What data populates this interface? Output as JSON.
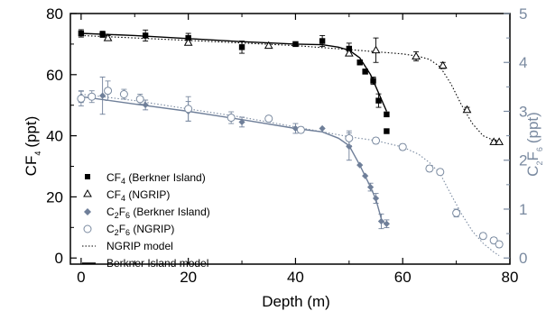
{
  "chart_data": {
    "type": "scatter",
    "x_axis": {
      "label": "Depth (m)",
      "range": [
        -2,
        80
      ],
      "ticks": [
        0,
        20,
        40,
        60,
        80
      ]
    },
    "y_left": {
      "label_main": "CF",
      "label_sub": "4",
      "label_unit": "(ppt)",
      "range": [
        -2,
        80
      ],
      "ticks": [
        0,
        20,
        40,
        60,
        80
      ],
      "color": "#000000"
    },
    "y_right": {
      "label_c": "C",
      "label_sub1": "2",
      "label_f": "F",
      "label_sub2": "6",
      "label_unit": "(ppt)",
      "range": [
        -0.125,
        5
      ],
      "ticks": [
        0,
        1,
        2,
        3,
        4,
        5
      ],
      "color": "#7a8aa0"
    },
    "legend": {
      "position": "lower-left",
      "entries": [
        {
          "pre": "CF",
          "sub": "4",
          "post": " (Berkner Island)"
        },
        {
          "pre": "CF",
          "sub": "4",
          "post": " (NGRIP)"
        },
        {
          "pre": "C",
          "sub": "2",
          "mid": "F",
          "sub2": "6",
          "post": " (Berkner Island)"
        },
        {
          "pre": "C",
          "sub": "2",
          "mid": "F",
          "sub2": "6",
          "post": " (NGRIP)"
        },
        {
          "pre": "NGRIP model"
        },
        {
          "pre": "Berkner Island model"
        }
      ]
    },
    "series": [
      {
        "name": "CF4 (Berkner Island)",
        "axis": "left",
        "marker": "square",
        "color": "#000000",
        "points": [
          {
            "x": 0,
            "y": 73.5,
            "err": 1.2
          },
          {
            "x": 4,
            "y": 73.2,
            "err": 1.0
          },
          {
            "x": 12,
            "y": 72.8,
            "err": 1.8
          },
          {
            "x": 20,
            "y": 72.0,
            "err": 1.5
          },
          {
            "x": 30,
            "y": 69.0,
            "err": 2.0
          },
          {
            "x": 40,
            "y": 70.0,
            "err": 0.6
          },
          {
            "x": 45,
            "y": 71.0,
            "err": 1.8
          },
          {
            "x": 50,
            "y": 68.5,
            "err": 1.8
          },
          {
            "x": 52,
            "y": 64.0,
            "err": 0.8
          },
          {
            "x": 53,
            "y": 61.0,
            "err": 0.8
          },
          {
            "x": 54.5,
            "y": 58.0,
            "err": 1.2
          },
          {
            "x": 55.5,
            "y": 51.5,
            "err": 2.2
          },
          {
            "x": 57,
            "y": 47.0,
            "err": 0
          },
          {
            "x": 57,
            "y": 41.5,
            "err": 0
          }
        ]
      },
      {
        "name": "CF4 (NGRIP)",
        "axis": "left",
        "marker": "triangle-open",
        "color": "#000000",
        "points": [
          {
            "x": 5,
            "y": 72.0,
            "err": 0.8
          },
          {
            "x": 20,
            "y": 70.5,
            "err": 0.8
          },
          {
            "x": 35,
            "y": 69.5,
            "err": 0.8
          },
          {
            "x": 50,
            "y": 67.0,
            "err": 0.8
          },
          {
            "x": 55,
            "y": 68.0,
            "err": 4.0
          },
          {
            "x": 62.5,
            "y": 66.0,
            "err": 1.5
          },
          {
            "x": 67.5,
            "y": 63.0,
            "err": 1.0
          },
          {
            "x": 72,
            "y": 48.5,
            "err": 0.8
          },
          {
            "x": 77,
            "y": 38.0,
            "err": 0.6
          },
          {
            "x": 78,
            "y": 38.0,
            "err": 0
          }
        ]
      },
      {
        "name": "C2F6 (Berkner Island)",
        "axis": "right",
        "marker": "diamond",
        "color": "#6f7f99",
        "points": [
          {
            "x": 0,
            "y": 3.3,
            "err": 0.12
          },
          {
            "x": 4,
            "y": 3.32,
            "err": 0.38
          },
          {
            "x": 12,
            "y": 3.13,
            "err": 0.1
          },
          {
            "x": 20,
            "y": 3.0,
            "err": 0.2
          },
          {
            "x": 30,
            "y": 2.78,
            "err": 0.1
          },
          {
            "x": 40,
            "y": 2.65,
            "err": 0.1
          },
          {
            "x": 45,
            "y": 2.65,
            "err": 0
          },
          {
            "x": 50,
            "y": 2.28,
            "err": 0.28
          },
          {
            "x": 52,
            "y": 1.9,
            "err": 0
          },
          {
            "x": 53,
            "y": 1.68,
            "err": 0
          },
          {
            "x": 54,
            "y": 1.45,
            "err": 0.08
          },
          {
            "x": 55,
            "y": 1.22,
            "err": 0.1
          },
          {
            "x": 56,
            "y": 0.75,
            "err": 0.15
          },
          {
            "x": 57,
            "y": 0.7,
            "err": 0.08
          }
        ]
      },
      {
        "name": "C2F6 (NGRIP)",
        "axis": "right",
        "marker": "circle-open",
        "color": "#7a8aa0",
        "points": [
          {
            "x": 0,
            "y": 3.26,
            "err": 0.15
          },
          {
            "x": 2,
            "y": 3.3,
            "err": 0.12
          },
          {
            "x": 5,
            "y": 3.42,
            "err": 0.2
          },
          {
            "x": 8,
            "y": 3.35,
            "err": 0.1
          },
          {
            "x": 11,
            "y": 3.25,
            "err": 0.1
          },
          {
            "x": 20,
            "y": 3.05,
            "err": 0.25
          },
          {
            "x": 28,
            "y": 2.87,
            "err": 0.12
          },
          {
            "x": 35,
            "y": 2.85,
            "err": 0.06
          },
          {
            "x": 41,
            "y": 2.62,
            "err": 0.06
          },
          {
            "x": 50,
            "y": 2.45,
            "err": 0.15
          },
          {
            "x": 55,
            "y": 2.4,
            "err": 0.06
          },
          {
            "x": 60,
            "y": 2.27,
            "err": 0.06
          },
          {
            "x": 65,
            "y": 1.83,
            "err": 0.06
          },
          {
            "x": 67,
            "y": 1.76,
            "err": 0.06
          },
          {
            "x": 70,
            "y": 0.92,
            "err": 0.08
          },
          {
            "x": 75,
            "y": 0.45,
            "err": 0.06
          },
          {
            "x": 77,
            "y": 0.36,
            "err": 0.06
          },
          {
            "x": 78,
            "y": 0.28,
            "err": 0.06
          }
        ]
      },
      {
        "name": "NGRIP model",
        "axis": "left",
        "kind": "line",
        "dash": true,
        "color": "#000000",
        "points": [
          [
            0,
            72.8
          ],
          [
            20,
            71.2
          ],
          [
            40,
            69.5
          ],
          [
            50,
            68.2
          ],
          [
            55,
            67.5
          ],
          [
            60,
            66.8
          ],
          [
            63,
            66.0
          ],
          [
            65,
            65.0
          ],
          [
            67,
            62.5
          ],
          [
            69,
            57.0
          ],
          [
            71,
            50.0
          ],
          [
            73,
            44.0
          ],
          [
            75,
            40.0
          ],
          [
            77,
            38.5
          ],
          [
            78,
            38.2
          ]
        ]
      },
      {
        "name": "Berkner Island model",
        "axis": "left",
        "kind": "line",
        "dash": false,
        "color": "#000000",
        "points": [
          [
            0,
            73.5
          ],
          [
            10,
            72.8
          ],
          [
            20,
            71.8
          ],
          [
            30,
            70.8
          ],
          [
            40,
            70.0
          ],
          [
            45,
            69.8
          ],
          [
            48,
            69.0
          ],
          [
            50,
            68.0
          ],
          [
            52,
            65.5
          ],
          [
            54,
            60.0
          ],
          [
            55.5,
            54.0
          ],
          [
            57,
            48.0
          ]
        ]
      },
      {
        "name": "C2F6 NGRIP model",
        "axis": "right",
        "kind": "line",
        "dash": true,
        "color": "#7a8aa0",
        "points": [
          [
            0,
            3.35
          ],
          [
            10,
            3.22
          ],
          [
            20,
            3.05
          ],
          [
            30,
            2.88
          ],
          [
            40,
            2.68
          ],
          [
            50,
            2.48
          ],
          [
            55,
            2.4
          ],
          [
            60,
            2.27
          ],
          [
            63,
            2.12
          ],
          [
            65,
            1.95
          ],
          [
            67,
            1.72
          ],
          [
            69,
            1.3
          ],
          [
            71,
            0.9
          ],
          [
            73,
            0.55
          ],
          [
            75,
            0.3
          ],
          [
            77,
            0.12
          ],
          [
            78,
            0.05
          ]
        ]
      },
      {
        "name": "C2F6 Berkner model",
        "axis": "right",
        "kind": "line",
        "dash": false,
        "color": "#6f7f99",
        "points": [
          [
            0,
            3.3
          ],
          [
            10,
            3.15
          ],
          [
            20,
            3.0
          ],
          [
            30,
            2.83
          ],
          [
            40,
            2.65
          ],
          [
            45,
            2.58
          ],
          [
            48,
            2.45
          ],
          [
            50,
            2.3
          ],
          [
            52,
            1.9
          ],
          [
            54,
            1.45
          ],
          [
            55,
            1.2
          ],
          [
            56,
            0.8
          ],
          [
            57,
            0.65
          ]
        ]
      }
    ]
  }
}
